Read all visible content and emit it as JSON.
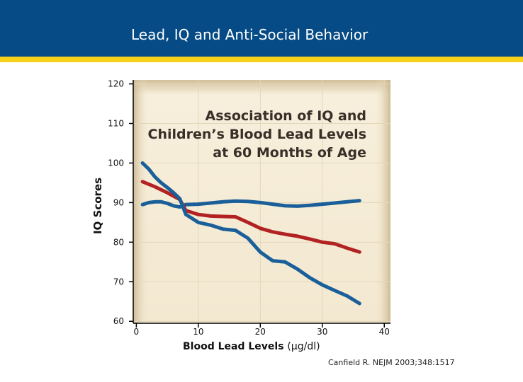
{
  "header": {
    "title": "Lead, IQ and Anti-Social Behavior",
    "colors": {
      "band": "#064b85",
      "stripe": "#f6d31a"
    }
  },
  "citation": "Canfield R. NEJM 2003;348:1517",
  "chart_data": {
    "type": "line",
    "title": [
      "Association of IQ and",
      "Children’s Blood Lead Levels",
      "at 60 Months of Age"
    ],
    "xlabel": "Blood Lead Levels",
    "xlabel_unit": "(μg/dl)",
    "ylabel": "IQ Scores",
    "xlim": [
      -0.5,
      41
    ],
    "ylim": [
      59.5,
      121
    ],
    "xticks": [
      0,
      10,
      20,
      30,
      40
    ],
    "yticks": [
      60,
      70,
      80,
      90,
      100,
      110,
      120
    ],
    "grid": true,
    "colors": {
      "band": "#1a5f99",
      "mean": "#b22222",
      "plot_bg": "#f5ecd8",
      "grid": "#e3d6b8"
    },
    "series": [
      {
        "role": "upper",
        "x": [
          1,
          2,
          3,
          4,
          5,
          6,
          7,
          8,
          10,
          12,
          14,
          16,
          18,
          20,
          22,
          24,
          26,
          28,
          30,
          32,
          34,
          36
        ],
        "y": [
          89.5,
          90,
          90.2,
          90.2,
          89.8,
          89.2,
          88.9,
          89.5,
          89.6,
          89.9,
          90.2,
          90.4,
          90.3,
          90,
          89.6,
          89.2,
          89.1,
          89.3,
          89.6,
          89.9,
          90.2,
          90.5
        ]
      },
      {
        "role": "mean",
        "x": [
          1,
          3,
          5,
          7,
          8,
          10,
          12,
          14,
          16,
          18,
          20,
          22,
          24,
          26,
          28,
          30,
          32,
          34,
          36
        ],
        "y": [
          95.3,
          94,
          92.5,
          90.8,
          88,
          87,
          86.6,
          86.5,
          86.4,
          85,
          83.5,
          82.6,
          82,
          81.5,
          80.8,
          80,
          79.6,
          78.5,
          77.5
        ]
      },
      {
        "role": "lower",
        "x": [
          1,
          2,
          3,
          4,
          5,
          6,
          7,
          8,
          10,
          12,
          14,
          16,
          18,
          20,
          22,
          24,
          26,
          28,
          30,
          32,
          34,
          36
        ],
        "y": [
          100,
          98.5,
          96.5,
          95,
          93.8,
          92.5,
          91,
          87,
          85,
          84.3,
          83.3,
          83,
          81,
          77.5,
          75.3,
          75,
          73.2,
          71,
          69.2,
          67.8,
          66.4,
          64.5
        ]
      }
    ]
  }
}
